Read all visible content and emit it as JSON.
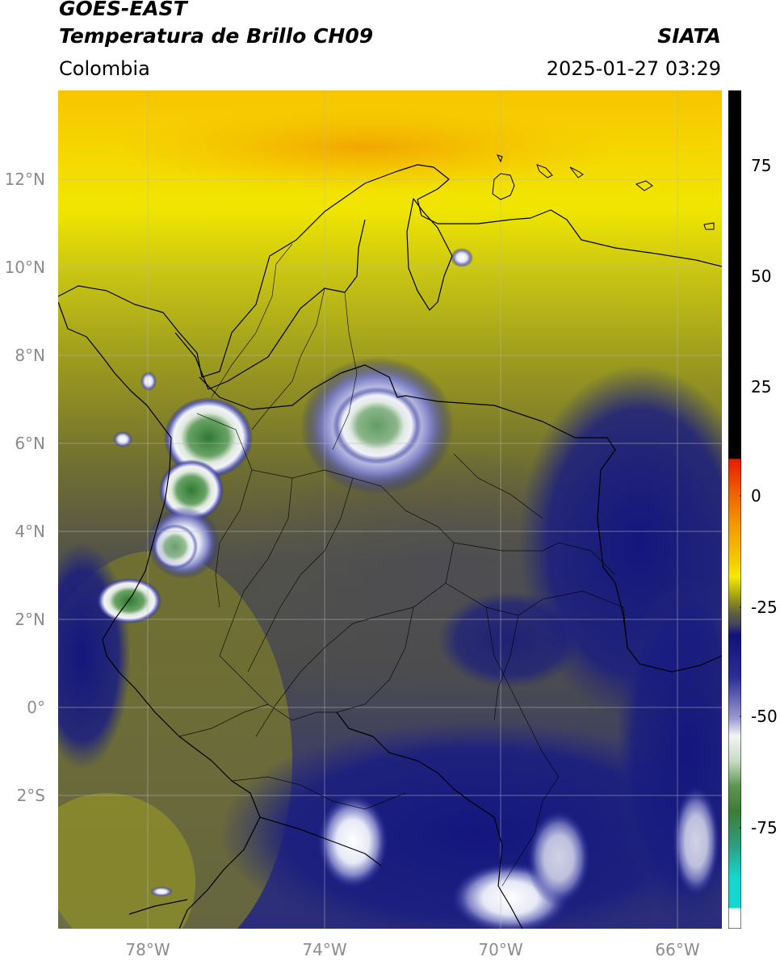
{
  "header": {
    "title_line1": "GOES-EAST",
    "title_line2": "Temperatura de Brillo CH09",
    "brand": "SIATA",
    "region": "Colombia",
    "timestamp": "2025-01-27 03:29"
  },
  "map": {
    "lat_ticks": [
      "12°N",
      "10°N",
      "8°N",
      "6°N",
      "4°N",
      "2°N",
      "0°",
      "2°S"
    ],
    "lon_ticks": [
      "78°W",
      "74°W",
      "70°W",
      "66°W"
    ],
    "lat_range": [
      -5,
      14
    ],
    "lon_range": [
      -80,
      -65
    ],
    "grid": true,
    "features": [
      "coastlines",
      "country borders",
      "department borders"
    ]
  },
  "colorbar": {
    "ticks": [
      "75",
      "50",
      "25",
      "0",
      "-25",
      "-50",
      "-75"
    ],
    "range": [
      -95,
      90
    ],
    "unit_hint": "°C",
    "colors": {
      "above_10": "#000000",
      "warm_red": "#e81c00",
      "orange": "#f39c00",
      "yellow": "#f6ea00",
      "olive": "#8b8b1e",
      "gray": "#4a4a58",
      "navy": "#10127a",
      "white": "#f4f4f4",
      "green": "#3c7d36",
      "cyan": "#14d7d2"
    }
  }
}
